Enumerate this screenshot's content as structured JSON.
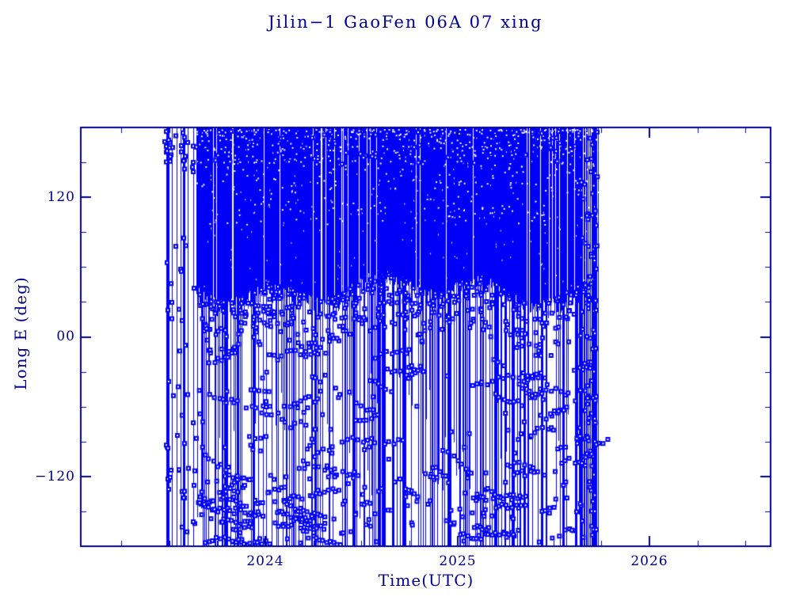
{
  "colors": {
    "background": "#ffffff",
    "axis_text": "#000090",
    "data": "#0000F6"
  },
  "labels": {
    "x_ticks": [
      "2024",
      "2025",
      "2026"
    ],
    "y_ticks": [
      "120",
      "00",
      "−120"
    ]
  },
  "chart_data": {
    "type": "scatter",
    "title": "Jilin−1 GaoFen 06A 07 xing",
    "xlabel": "Time(UTC)",
    "ylabel": "Long E (deg)",
    "xlim": [
      2023.04,
      2026.63
    ],
    "ylim": [
      -180,
      180
    ],
    "x_major_ticks": [
      2024,
      2025,
      2026
    ],
    "x_minor_step_years": 0.25,
    "y_major_ticks": [
      120,
      0,
      -120
    ],
    "y_minor_step_deg": 30,
    "grid": false,
    "legend": "none",
    "series": [
      {
        "name": "ground-track longitude vs time",
        "color": "#0000F6",
        "marker": "small open square",
        "line_style": "thin vertical wrap-around lines connecting successive longitudes",
        "time_start": 2023.47,
        "time_end": 2025.73,
        "sparse_until": 2023.64,
        "dense_spike_start": 2025.645,
        "dense_band_deg": {
          "top": 180,
          "bottom_mean": 36,
          "bottom_jitter_deg": 12
        },
        "scattered_points_deg_range": [
          -180,
          30
        ],
        "bottom_cluster": {
          "time_range": [
            2023.6,
            2024.25
          ],
          "deg_range": [
            -180,
            -130
          ]
        },
        "description": "Near-solid blue band of crossings between ~35E and 180E from mid-2023 to late 2025; full-height vertical wrap lines throughout; sparse square markers and short diagonal chains scattered between 30E and -180E with a denser clump below -130E in late 2023 / early 2024."
      }
    ]
  }
}
